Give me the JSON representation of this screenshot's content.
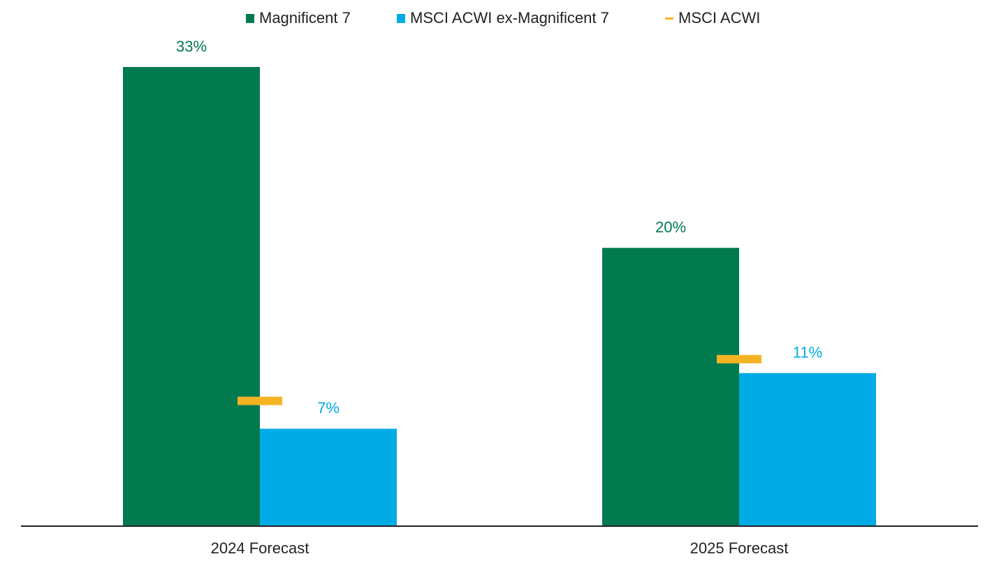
{
  "chart_data": {
    "type": "bar",
    "categories": [
      "2024 Forecast",
      "2025 Forecast"
    ],
    "series": [
      {
        "name": "Magnificent 7",
        "color": "#007a4e",
        "style": "bar",
        "values": [
          33,
          20
        ],
        "value_labels": [
          "33%",
          "20%"
        ]
      },
      {
        "name": "MSCI ACWI ex-Magnificent 7",
        "color": "#00abe6",
        "style": "bar",
        "values": [
          7,
          11
        ],
        "value_labels": [
          "7%",
          "11%"
        ]
      },
      {
        "name": "MSCI ACWI",
        "color": "#f5b324",
        "style": "dash",
        "values": [
          9,
          12
        ]
      }
    ],
    "legend": "top"
  }
}
